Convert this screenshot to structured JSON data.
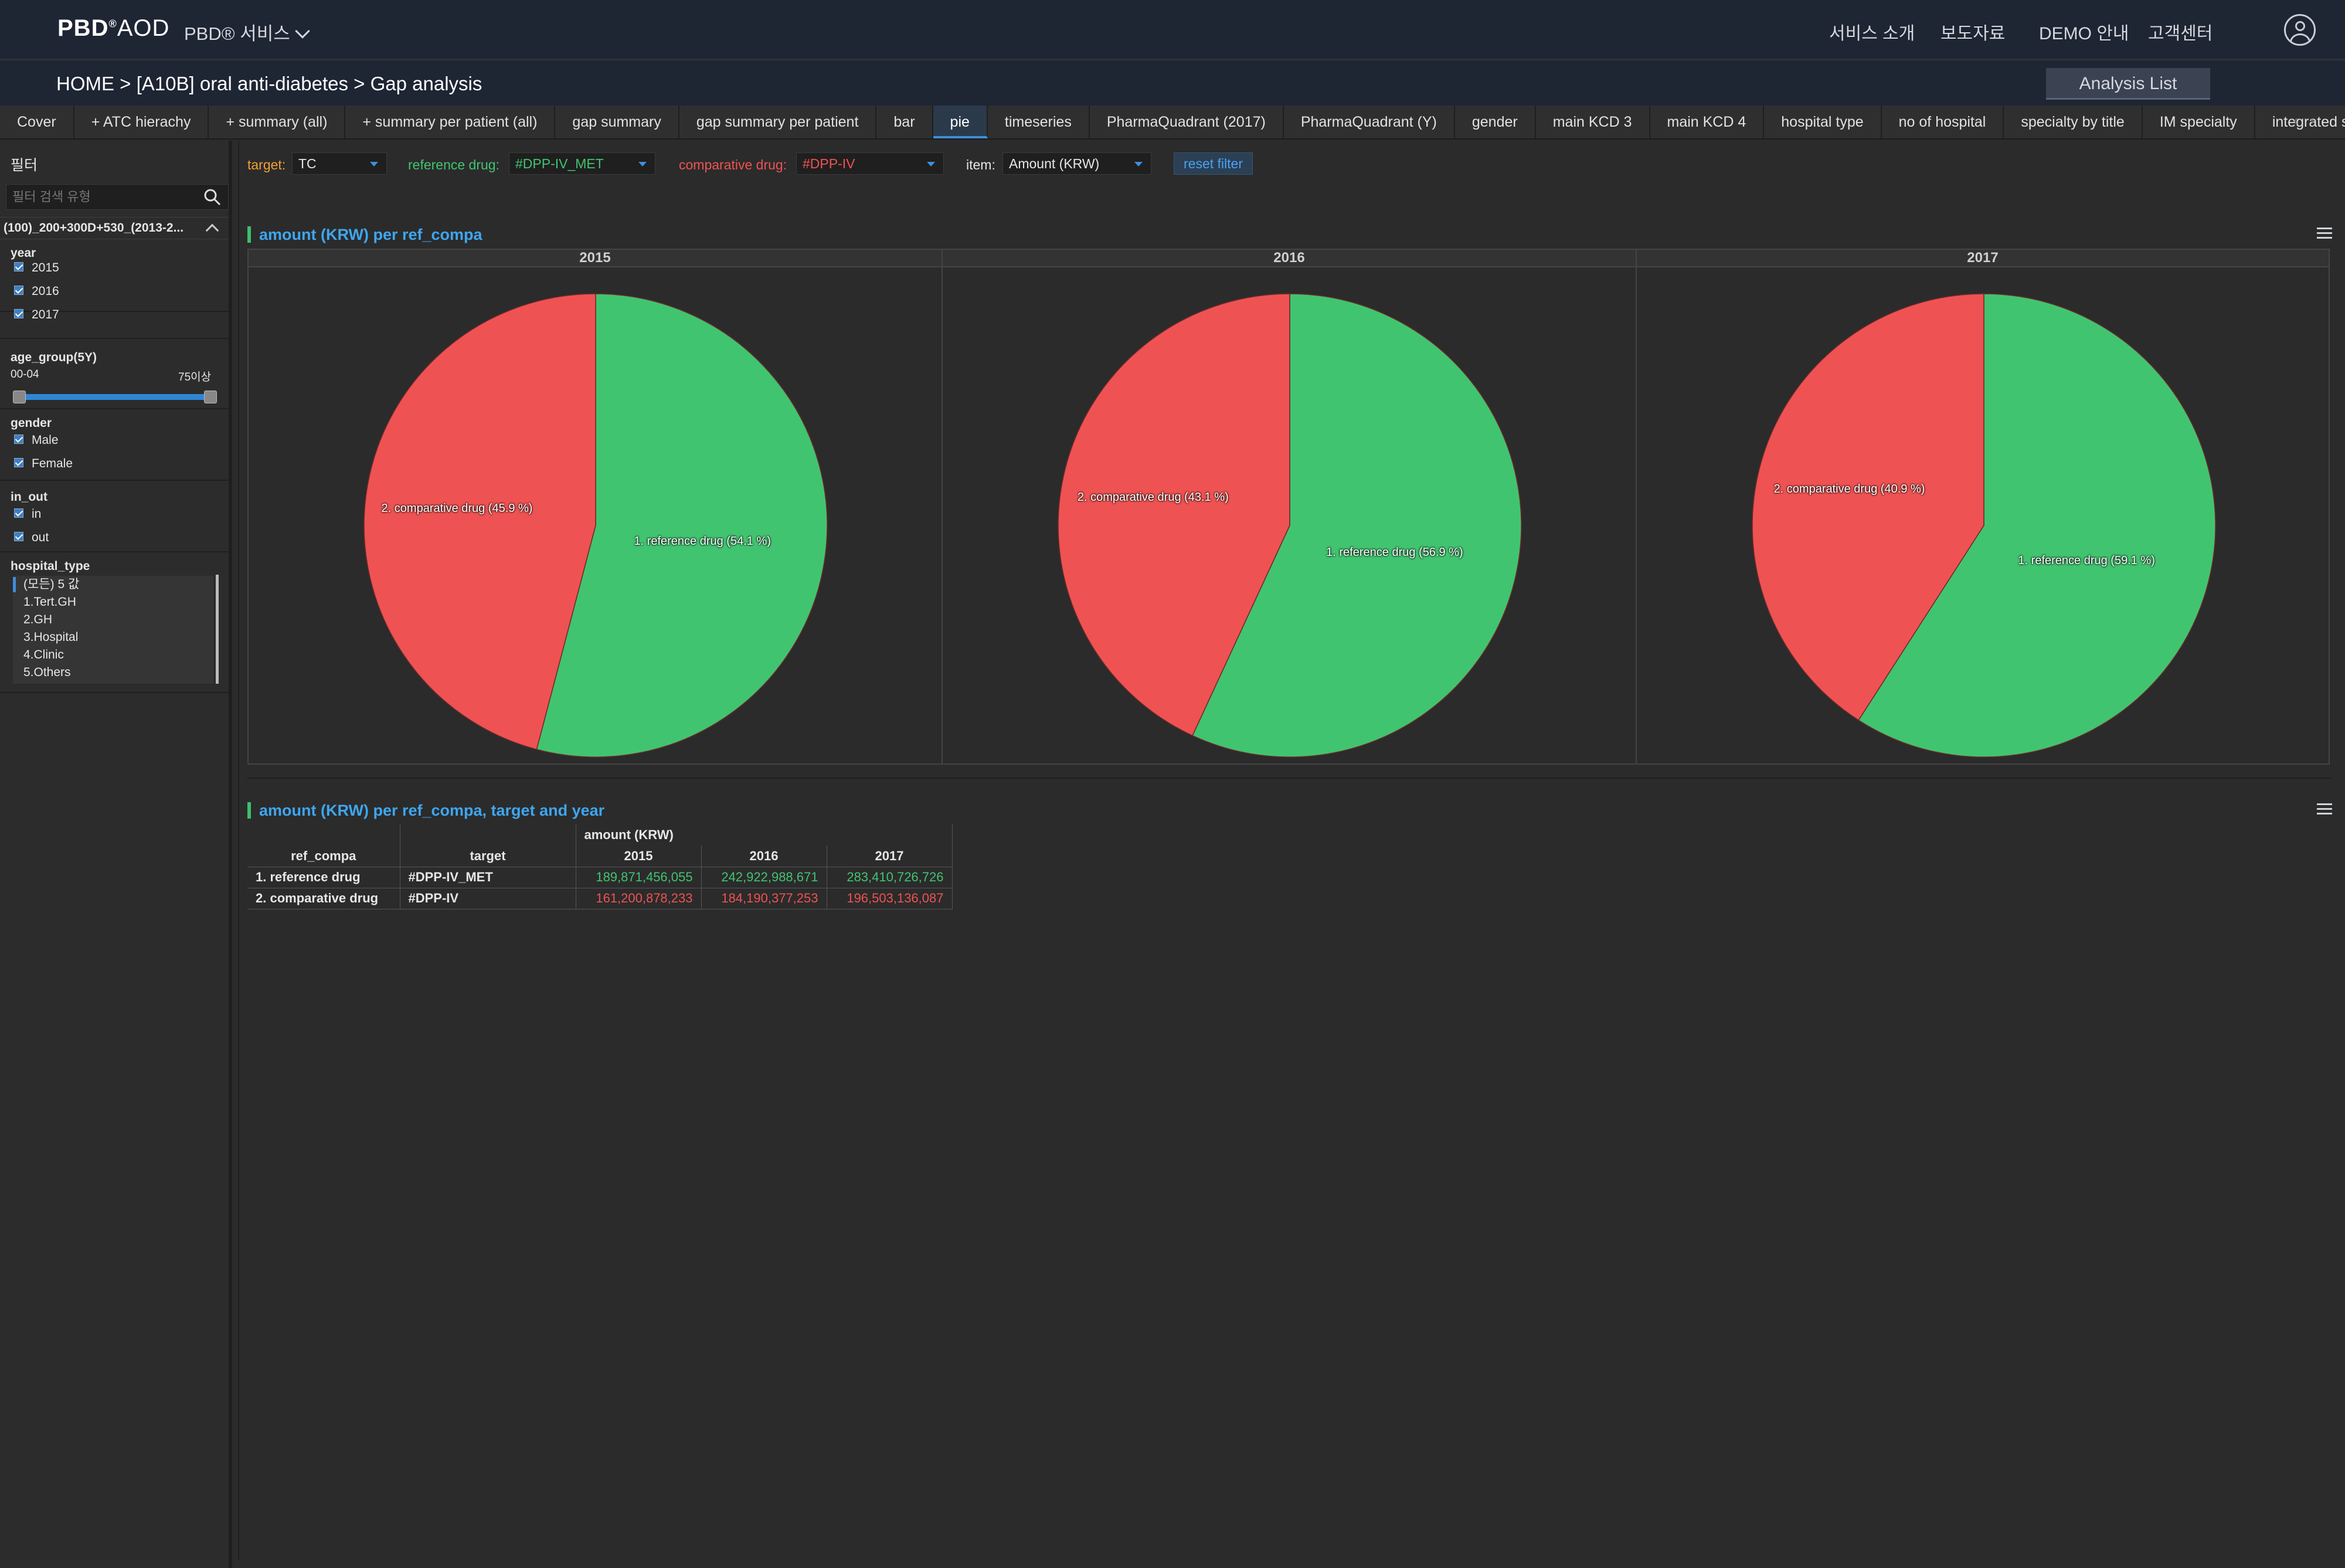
{
  "header": {
    "logo_main": "PBD",
    "logo_sup": "®",
    "logo_tail": "AOD",
    "service_menu": "PBD® 서비스",
    "nav": [
      "서비스 소개",
      "보도자료",
      "DEMO 안내",
      "고객센터"
    ]
  },
  "breadcrumb": "HOME >  [A10B] oral anti-diabetes > Gap analysis",
  "analysis_list": "Analysis List",
  "tabs": [
    {
      "label": "Cover"
    },
    {
      "label": "+ ATC hierachy"
    },
    {
      "label": "+ summary (all)"
    },
    {
      "label": "+ summary per patient (all)"
    },
    {
      "label": "gap summary"
    },
    {
      "label": "gap summary per patient"
    },
    {
      "label": "bar"
    },
    {
      "label": "pie",
      "active": true
    },
    {
      "label": "timeseries"
    },
    {
      "label": "PharmaQuadrant (2017)"
    },
    {
      "label": "PharmaQuadrant (Y)"
    },
    {
      "label": "gender"
    },
    {
      "label": "main KCD 3"
    },
    {
      "label": "main KCD 4"
    },
    {
      "label": "hospital type"
    },
    {
      "label": "no of hospital"
    },
    {
      "label": "specialty by title"
    },
    {
      "label": "IM specialty"
    },
    {
      "label": "integrated s"
    }
  ],
  "sidebar": {
    "title": "필터",
    "search_placeholder": "필터 검색 유형",
    "filter_set": "(100)_200+300D+530_(2013-2...",
    "year": {
      "title": "year",
      "items": [
        "2015",
        "2016",
        "2017"
      ]
    },
    "age": {
      "title": "age_group(5Y)",
      "min_label": "00-04",
      "max_label": "75이상"
    },
    "gender": {
      "title": "gender",
      "items": [
        "Male",
        "Female"
      ]
    },
    "in_out": {
      "title": "in_out",
      "items": [
        "in",
        "out"
      ]
    },
    "hospital_type": {
      "title": "hospital_type",
      "items": [
        "(모든) 5 값",
        "1.Tert.GH",
        "2.GH",
        "3.Hospital",
        "4.Clinic",
        "5.Others"
      ]
    }
  },
  "filters": {
    "target_label": "target:",
    "target_value": "TC",
    "ref_label": "reference drug:",
    "ref_value": "#DPP-IV_MET",
    "comp_label": "comparative drug:",
    "comp_value": "#DPP-IV",
    "item_label": "item:",
    "item_value": "Amount (KRW)",
    "reset": "reset filter"
  },
  "colors": {
    "reference": "#41c470",
    "comparative": "#ef5252",
    "title_blue": "#3ea6f0",
    "target_orange": "#f0a030"
  },
  "pie_panel_title": "amount (KRW) per ref_compa",
  "table_panel_title": "amount (KRW) per ref_compa, target and year",
  "chart_data": {
    "type": "pie",
    "facets": [
      {
        "year": "2015",
        "slices": [
          {
            "label": "1. reference drug (54.1 %)",
            "value": 54.1,
            "color": "#41c470"
          },
          {
            "label": "2. comparative drug (45.9 %)",
            "value": 45.9,
            "color": "#ef5252"
          }
        ]
      },
      {
        "year": "2016",
        "slices": [
          {
            "label": "1. reference drug (56.9 %)",
            "value": 56.9,
            "color": "#41c470"
          },
          {
            "label": "2. comparative drug (43.1 %)",
            "value": 43.1,
            "color": "#ef5252"
          }
        ]
      },
      {
        "year": "2017",
        "slices": [
          {
            "label": "1. reference drug (59.1 %)",
            "value": 59.1,
            "color": "#41c470"
          },
          {
            "label": "2. comparative drug (40.9 %)",
            "value": 40.9,
            "color": "#ef5252"
          }
        ]
      }
    ]
  },
  "table": {
    "group_header": "amount (KRW)",
    "headers": [
      "ref_compa",
      "target",
      "2015",
      "2016",
      "2017"
    ],
    "rows": [
      {
        "ref_compa": "1. reference drug",
        "target": "#DPP-IV_MET",
        "values": [
          "189,871,456,055",
          "242,922,988,671",
          "283,410,726,726"
        ]
      },
      {
        "ref_compa": "2. comparative drug",
        "target": "#DPP-IV",
        "values": [
          "161,200,878,233",
          "184,190,377,253",
          "196,503,136,087"
        ]
      }
    ]
  }
}
